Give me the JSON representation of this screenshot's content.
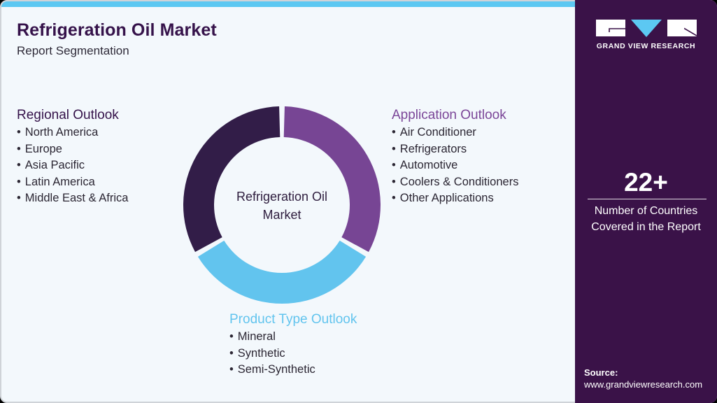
{
  "header": {
    "title": "Refrigeration Oil Market",
    "subtitle": "Report Segmentation"
  },
  "colors": {
    "accent_bar": "#5cc8f2",
    "side_panel": "#3a1248",
    "background": "#f3f8fc",
    "title": "#35124a",
    "segment_regional": "#321d48",
    "segment_application": "#774594",
    "segment_product": "#62c4ee"
  },
  "donut": {
    "center_label_line1": "Refrigeration Oil",
    "center_label_line2": "Market",
    "segments": [
      {
        "name": "Application Outlook",
        "color": "#774594",
        "start_deg": 0,
        "end_deg": 120
      },
      {
        "name": "Product Type Outlook",
        "color": "#62c4ee",
        "start_deg": 120,
        "end_deg": 240
      },
      {
        "name": "Regional Outlook",
        "color": "#321d48",
        "start_deg": 240,
        "end_deg": 360
      }
    ]
  },
  "segments": {
    "regional": {
      "heading": "Regional Outlook",
      "items": [
        "North America",
        "Europe",
        "Asia Pacific",
        "Latin America",
        "Middle East & Africa"
      ]
    },
    "application": {
      "heading": "Application Outlook",
      "items": [
        "Air Conditioner",
        "Refrigerators",
        "Automotive",
        "Coolers & Conditioners",
        "Other Applications"
      ]
    },
    "product": {
      "heading": "Product Type Outlook",
      "items": [
        "Mineral",
        "Synthetic",
        "Semi-Synthetic"
      ]
    }
  },
  "sidebar": {
    "logo_text": "GRAND VIEW RESEARCH",
    "logo_icon": "gvr-logo-icon",
    "stat_number": "22+",
    "stat_caption_line1": "Number of Countries",
    "stat_caption_line2": "Covered in the Report",
    "source_label": "Source:",
    "source_url": "www.grandviewresearch.com"
  }
}
